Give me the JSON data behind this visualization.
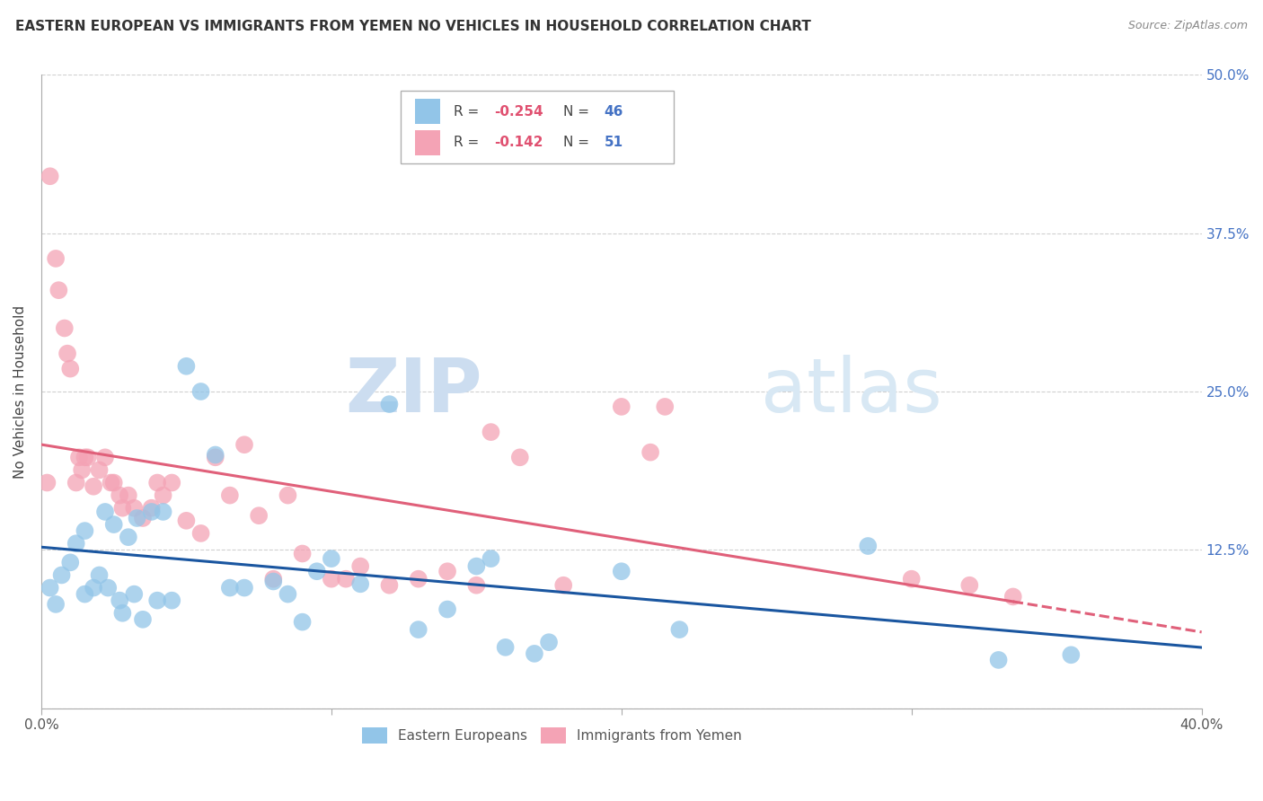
{
  "title": "EASTERN EUROPEAN VS IMMIGRANTS FROM YEMEN NO VEHICLES IN HOUSEHOLD CORRELATION CHART",
  "source": "Source: ZipAtlas.com",
  "ylabel": "No Vehicles in Household",
  "xlim": [
    0.0,
    0.4
  ],
  "ylim": [
    0.0,
    0.5
  ],
  "xticks": [
    0.0,
    0.1,
    0.2,
    0.3,
    0.4
  ],
  "yticks": [
    0.0,
    0.125,
    0.25,
    0.375,
    0.5
  ],
  "blue_R": "-0.254",
  "blue_N": "46",
  "pink_R": "-0.142",
  "pink_N": "51",
  "blue_color": "#92c5e8",
  "pink_color": "#f4a3b5",
  "blue_line_color": "#1a56a0",
  "pink_line_color": "#e0607a",
  "blue_scatter_x": [
    0.003,
    0.005,
    0.007,
    0.01,
    0.012,
    0.015,
    0.015,
    0.018,
    0.02,
    0.022,
    0.023,
    0.025,
    0.027,
    0.028,
    0.03,
    0.032,
    0.033,
    0.035,
    0.038,
    0.04,
    0.042,
    0.045,
    0.05,
    0.055,
    0.06,
    0.065,
    0.07,
    0.08,
    0.085,
    0.09,
    0.095,
    0.1,
    0.11,
    0.12,
    0.13,
    0.14,
    0.15,
    0.155,
    0.16,
    0.17,
    0.175,
    0.2,
    0.22,
    0.285,
    0.33,
    0.355
  ],
  "blue_scatter_y": [
    0.095,
    0.082,
    0.105,
    0.115,
    0.13,
    0.14,
    0.09,
    0.095,
    0.105,
    0.155,
    0.095,
    0.145,
    0.085,
    0.075,
    0.135,
    0.09,
    0.15,
    0.07,
    0.155,
    0.085,
    0.155,
    0.085,
    0.27,
    0.25,
    0.2,
    0.095,
    0.095,
    0.1,
    0.09,
    0.068,
    0.108,
    0.118,
    0.098,
    0.24,
    0.062,
    0.078,
    0.112,
    0.118,
    0.048,
    0.043,
    0.052,
    0.108,
    0.062,
    0.128,
    0.038,
    0.042
  ],
  "pink_scatter_x": [
    0.002,
    0.003,
    0.005,
    0.006,
    0.008,
    0.009,
    0.01,
    0.012,
    0.013,
    0.014,
    0.015,
    0.016,
    0.018,
    0.02,
    0.022,
    0.024,
    0.025,
    0.027,
    0.028,
    0.03,
    0.032,
    0.035,
    0.038,
    0.04,
    0.042,
    0.045,
    0.05,
    0.055,
    0.06,
    0.065,
    0.07,
    0.075,
    0.08,
    0.085,
    0.09,
    0.1,
    0.105,
    0.11,
    0.12,
    0.13,
    0.14,
    0.15,
    0.155,
    0.165,
    0.18,
    0.2,
    0.21,
    0.215,
    0.3,
    0.32,
    0.335
  ],
  "pink_scatter_y": [
    0.178,
    0.42,
    0.355,
    0.33,
    0.3,
    0.28,
    0.268,
    0.178,
    0.198,
    0.188,
    0.198,
    0.198,
    0.175,
    0.188,
    0.198,
    0.178,
    0.178,
    0.168,
    0.158,
    0.168,
    0.158,
    0.15,
    0.158,
    0.178,
    0.168,
    0.178,
    0.148,
    0.138,
    0.198,
    0.168,
    0.208,
    0.152,
    0.102,
    0.168,
    0.122,
    0.102,
    0.102,
    0.112,
    0.097,
    0.102,
    0.108,
    0.097,
    0.218,
    0.198,
    0.097,
    0.238,
    0.202,
    0.238,
    0.102,
    0.097,
    0.088
  ]
}
